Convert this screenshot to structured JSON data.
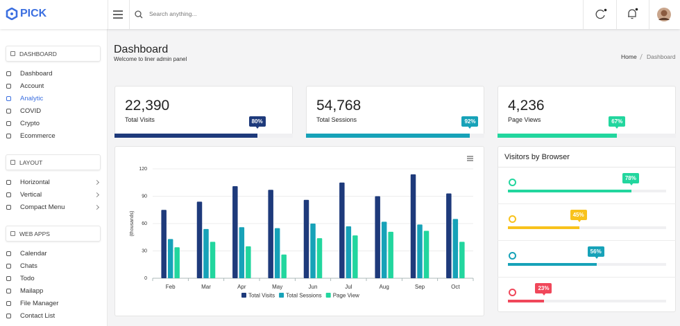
{
  "header": {
    "logo": "PICK",
    "search_placeholder": "Search anything..."
  },
  "sidebar": {
    "sections": [
      {
        "title": "DASHBOARD",
        "items": [
          "Dashboard",
          "Account",
          "Analytic",
          "COVID",
          "Crypto",
          "Ecommerce"
        ]
      },
      {
        "title": "LAYOUT",
        "items": [
          "Horizontal",
          "Vertical",
          "Compact Menu"
        ]
      },
      {
        "title": "WEB APPS",
        "items": [
          "Calendar",
          "Chats",
          "Todo",
          "Mailapp",
          "File Manager",
          "Contact List"
        ]
      }
    ]
  },
  "page": {
    "title": "Dashboard",
    "subtitle": "Welcome to liner admin panel",
    "breadcrumb": [
      "Home",
      "Dashboard"
    ]
  },
  "stats": [
    {
      "value": "22,390",
      "label": "Total Visits",
      "progress": 80,
      "progress_label": "80%",
      "color": "#1e3a7b"
    },
    {
      "value": "54,768",
      "label": "Total Sessions",
      "progress": 92,
      "progress_label": "92%",
      "color": "#17a2b8"
    },
    {
      "value": "4,236",
      "label": "Page Views",
      "progress": 67,
      "progress_label": "67%",
      "color": "#22d69e"
    }
  ],
  "chart_data": {
    "type": "bar",
    "y_label": "(thousands)",
    "categories": [
      "Feb",
      "Mar",
      "Apr",
      "May",
      "Jun",
      "Jul",
      "Aug",
      "Sep",
      "Oct"
    ],
    "series": [
      {
        "name": "Total Visits",
        "color": "#1e3a7b",
        "values": [
          75,
          84,
          101,
          97,
          86,
          105,
          90,
          114,
          93
        ]
      },
      {
        "name": "Total Sessions",
        "color": "#17a2b8",
        "values": [
          43,
          54,
          56,
          55,
          60,
          57,
          62,
          59,
          65
        ]
      },
      {
        "name": "Page View",
        "color": "#22d69e",
        "values": [
          34,
          40,
          35,
          26,
          44,
          47,
          51,
          52,
          40
        ]
      }
    ],
    "ylim": [
      0,
      120
    ],
    "yticks": [
      0,
      30,
      60,
      90,
      120
    ],
    "grid": true
  },
  "browsers": {
    "title": "Visitors by Browser",
    "items": [
      {
        "progress": 78,
        "progress_label": "78%",
        "color": "#22d69e"
      },
      {
        "progress": 45,
        "progress_label": "45%",
        "color": "#f8c21c"
      },
      {
        "progress": 56,
        "progress_label": "56%",
        "color": "#17a2b8"
      },
      {
        "progress": 23,
        "progress_label": "23%",
        "color": "#f0475a"
      }
    ]
  }
}
